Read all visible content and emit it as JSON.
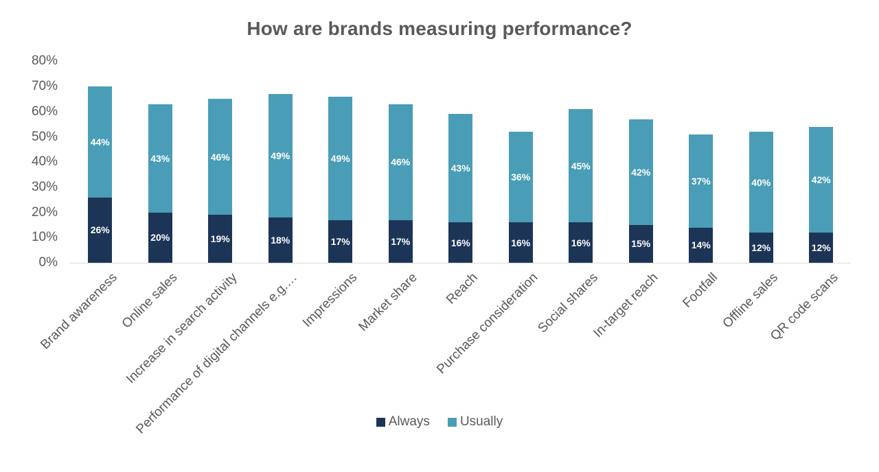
{
  "chart_data": {
    "type": "bar",
    "stacked": true,
    "title": "How are brands measuring performance?",
    "xlabel": "",
    "ylabel": "",
    "categories": [
      "Brand awareness",
      "Online sales",
      "Increase in search activity",
      "Performance of digital channels e.g.…",
      "Impressions",
      "Market share",
      "Reach",
      "Purchase consideration",
      "Social shares",
      "In-target reach",
      "Footfall",
      "Offline sales",
      "QR code scans"
    ],
    "series": [
      {
        "name": "Always",
        "color": "#1c3557",
        "values": [
          26,
          20,
          19,
          18,
          17,
          17,
          16,
          16,
          16,
          15,
          14,
          12,
          12
        ]
      },
      {
        "name": "Usually",
        "color": "#4a9db6",
        "values": [
          44,
          43,
          46,
          49,
          49,
          46,
          43,
          36,
          45,
          42,
          37,
          40,
          42
        ]
      }
    ],
    "value_suffix": "%",
    "ylim": [
      0,
      80
    ],
    "y_ticks": [
      "0%",
      "10%",
      "20%",
      "30%",
      "40%",
      "50%",
      "60%",
      "70%",
      "80%"
    ],
    "grid": false,
    "legend_position": "bottom",
    "colors": {
      "title_text": "#595959",
      "axis_text": "#595959",
      "axis_line": "#d9d9d9",
      "bar_value_text": "#ffffff"
    }
  }
}
